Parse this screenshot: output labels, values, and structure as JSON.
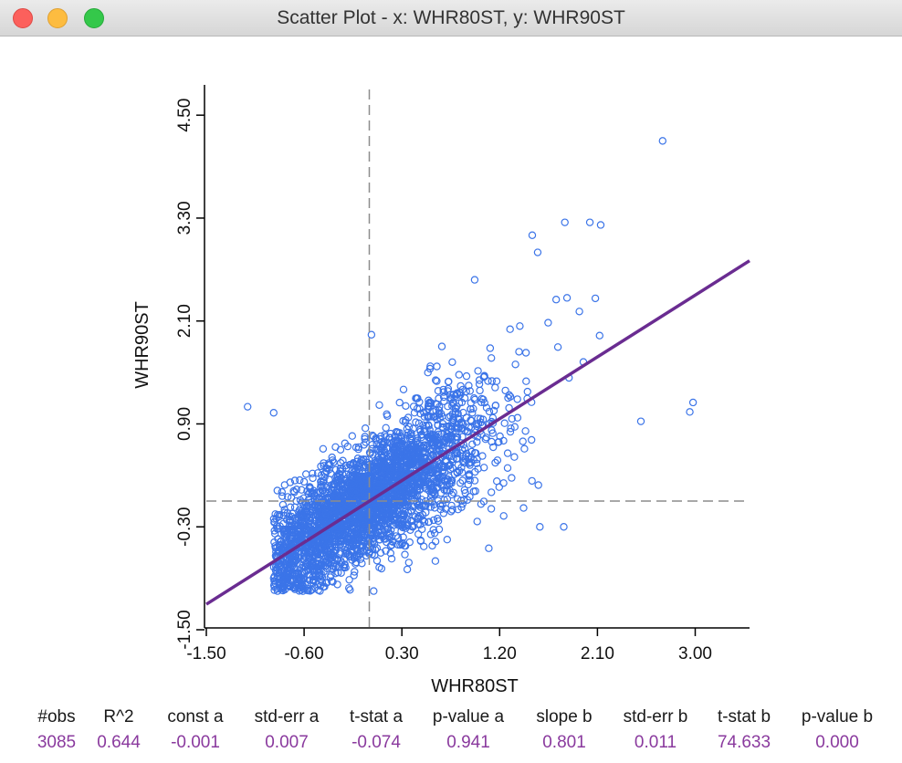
{
  "window": {
    "title": "Scatter Plot - x: WHR80ST, y: WHR90ST",
    "buttons": {
      "close": "#fc605c",
      "minimize": "#fdbc40",
      "maximize": "#34c84a"
    }
  },
  "chart_data": {
    "type": "scatter",
    "xlabel": "WHR80ST",
    "ylabel": "WHR90ST",
    "xlim": [
      -1.5,
      3.5
    ],
    "ylim": [
      -1.5,
      4.8
    ],
    "xticks": [
      "-1.50",
      "-0.60",
      "0.30",
      "1.20",
      "2.10",
      "3.00"
    ],
    "xtick_values": [
      -1.5,
      -0.6,
      0.3,
      1.2,
      2.1,
      3.0
    ],
    "yticks": [
      "-1.50",
      "-0.30",
      "0.90",
      "2.10",
      "3.30",
      "4.50"
    ],
    "ytick_values": [
      -1.5,
      -0.3,
      0.9,
      2.1,
      3.3,
      4.5
    ],
    "grid": false,
    "mean_lines": {
      "x": 0.0,
      "y": 0.0
    },
    "regression": {
      "intercept": -0.001,
      "slope": 0.801
    },
    "colors": {
      "points": "#3b74e8",
      "regression": "#6a2c91",
      "mean_lines": "#8c8c8c"
    },
    "notable_points": [
      {
        "x": 2.7,
        "y": 4.2
      },
      {
        "x": 1.8,
        "y": 3.25
      },
      {
        "x": 2.03,
        "y": 3.25
      },
      {
        "x": 2.13,
        "y": 3.22
      },
      {
        "x": 1.5,
        "y": 3.1
      },
      {
        "x": 1.55,
        "y": 2.9
      },
      {
        "x": 0.97,
        "y": 2.58
      },
      {
        "x": 1.72,
        "y": 2.35
      },
      {
        "x": 1.82,
        "y": 2.37
      },
      {
        "x": 2.12,
        "y": 1.93
      },
      {
        "x": 2.98,
        "y": 1.15
      },
      {
        "x": 2.95,
        "y": 1.04
      },
      {
        "x": 2.5,
        "y": 0.93
      },
      {
        "x": -1.12,
        "y": 1.1
      },
      {
        "x": -0.88,
        "y": 1.03
      },
      {
        "x": 0.02,
        "y": 1.94
      },
      {
        "x": 1.42,
        "y": -0.08
      },
      {
        "x": 1.57,
        "y": -0.3
      },
      {
        "x": 1.79,
        "y": -0.3
      },
      {
        "x": 1.1,
        "y": -0.55
      }
    ],
    "cloud": {
      "n": 3085,
      "x_center": 0.0,
      "x_spread": 0.55,
      "x_min": -0.88,
      "y_min": -1.05,
      "noise": 0.45
    }
  },
  "stats": {
    "columns": [
      {
        "label": "#obs",
        "value": "3085"
      },
      {
        "label": "R^2",
        "value": "0.644"
      },
      {
        "label": "const a",
        "value": "-0.001"
      },
      {
        "label": "std-err a",
        "value": "0.007"
      },
      {
        "label": "t-stat a",
        "value": "-0.074"
      },
      {
        "label": "p-value a",
        "value": "0.941"
      },
      {
        "label": "slope b",
        "value": "0.801"
      },
      {
        "label": "std-err b",
        "value": "0.011"
      },
      {
        "label": "t-stat b",
        "value": "74.633"
      },
      {
        "label": "p-value b",
        "value": "0.000"
      }
    ]
  }
}
